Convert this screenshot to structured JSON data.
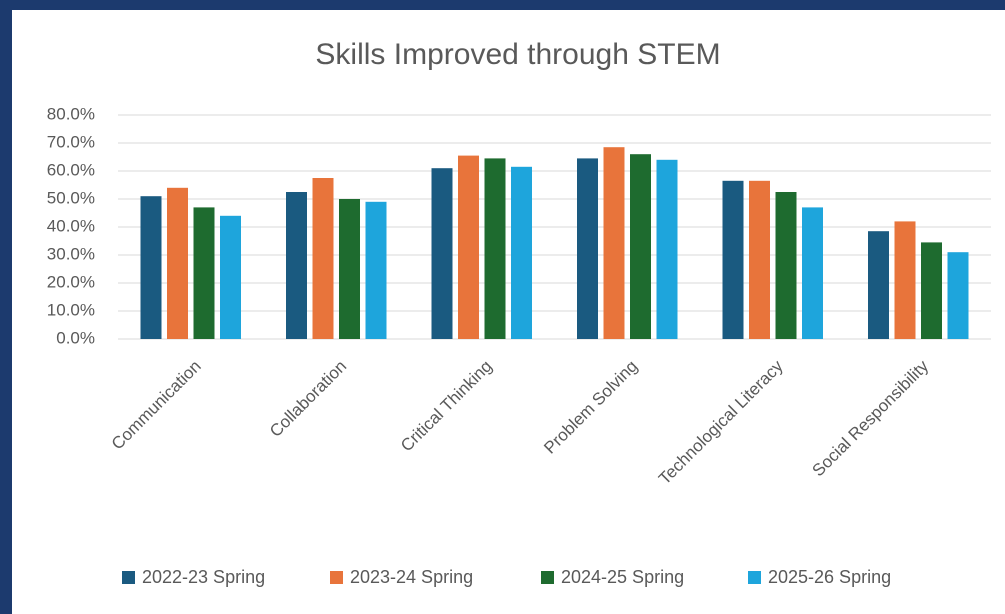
{
  "chart_data": {
    "type": "bar",
    "title": "Skills Improved through STEM",
    "categories": [
      "Communication",
      "Collaboration",
      "Critical Thinking",
      "Problem Solving",
      "Technological Literacy",
      "Social Responsibility"
    ],
    "series": [
      {
        "name": "2022-23 Spring",
        "color": "#1a5a80",
        "values": [
          51,
          52.5,
          61,
          64.5,
          56.5,
          38.5
        ]
      },
      {
        "name": "2023-24 Spring",
        "color": "#e8743b",
        "values": [
          54,
          57.5,
          65.5,
          68.5,
          56.5,
          42
        ]
      },
      {
        "name": "2024-25 Spring",
        "color": "#1e6b2f",
        "values": [
          47,
          50,
          64.5,
          66,
          52.5,
          34.5
        ]
      },
      {
        "name": "2025-26 Spring",
        "color": "#1ea5dc",
        "values": [
          44,
          49,
          61.5,
          64,
          47,
          31
        ]
      }
    ],
    "ylim": [
      0,
      80
    ],
    "yticks": [
      {
        "value": 0,
        "label": "0.0%"
      },
      {
        "value": 10,
        "label": "10.0%"
      },
      {
        "value": 20,
        "label": "20.0%"
      },
      {
        "value": 30,
        "label": "30.0%"
      },
      {
        "value": 40,
        "label": "40.0%"
      },
      {
        "value": 50,
        "label": "50.0%"
      },
      {
        "value": 60,
        "label": "60.0%"
      },
      {
        "value": 70,
        "label": "70.0%"
      },
      {
        "value": 80,
        "label": "80.0%"
      }
    ],
    "grid": true,
    "legend": "bottom"
  }
}
